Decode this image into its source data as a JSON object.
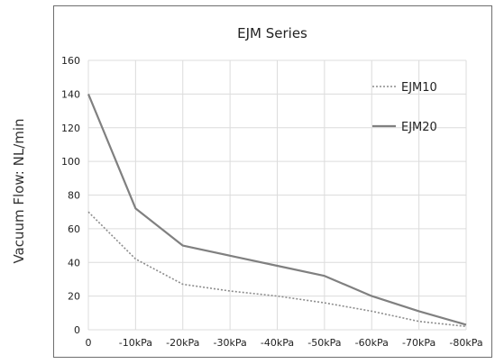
{
  "chart_data": {
    "type": "line",
    "title": "EJM Series",
    "ylabel": "Vacuum Flow:  NL/min",
    "xlabel": "",
    "categories": [
      "0",
      "-10kPa",
      "-20kPa",
      "-30kPa",
      "-40kPa",
      "-50kPa",
      "-60kPa",
      "-70kPa",
      "-80kPa"
    ],
    "ylim": [
      0,
      160
    ],
    "yticks": [
      "0",
      "20",
      "40",
      "60",
      "80",
      "100",
      "120",
      "140",
      "160"
    ],
    "grid": true,
    "legend_position": "top-right",
    "series": [
      {
        "name": "EJM10",
        "style": "dotted",
        "color": "#8c8c8c",
        "values": [
          70,
          42,
          27,
          23,
          20,
          16,
          11,
          5,
          2
        ]
      },
      {
        "name": "EJM20",
        "style": "solid",
        "color": "#808080",
        "values": [
          140,
          72,
          50,
          44,
          38,
          32,
          20,
          11,
          3
        ]
      }
    ]
  }
}
